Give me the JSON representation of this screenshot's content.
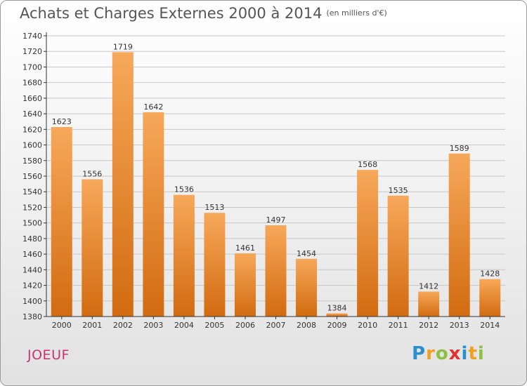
{
  "header": {
    "title": "Achats et Charges Externes 2000 à 2014",
    "unit": "(en milliers d'€)"
  },
  "footer": {
    "city": "JOEUF",
    "logo": {
      "letters": [
        {
          "char": "P",
          "color": "#2a8fd0"
        },
        {
          "char": "r",
          "color": "#f0a020"
        },
        {
          "char": "o",
          "color": "#8cc040"
        },
        {
          "char": "x",
          "color": "#e03030"
        },
        {
          "char": "i",
          "color": "#2a8fd0"
        },
        {
          "char": "t",
          "color": "#f0a020"
        },
        {
          "char": "i",
          "color": "#8cc040"
        }
      ]
    }
  },
  "colors": {
    "bar_top": "#f7a85a",
    "bar_bottom": "#d26b10",
    "grid": "#c8c8c8",
    "axis": "#333333"
  },
  "chart_data": {
    "type": "bar",
    "title": "Achats et Charges Externes 2000 à 2014",
    "subtitle": "(en milliers d'€)",
    "xlabel": "",
    "ylabel": "",
    "categories": [
      "2000",
      "2001",
      "2002",
      "2003",
      "2004",
      "2005",
      "2006",
      "2007",
      "2008",
      "2009",
      "2010",
      "2011",
      "2012",
      "2013",
      "2014"
    ],
    "values": [
      1623,
      1556,
      1719,
      1642,
      1536,
      1513,
      1461,
      1497,
      1454,
      1384,
      1568,
      1535,
      1412,
      1589,
      1428
    ],
    "ylim": [
      1380,
      1740
    ],
    "ytick_step": 20,
    "grid": true
  }
}
